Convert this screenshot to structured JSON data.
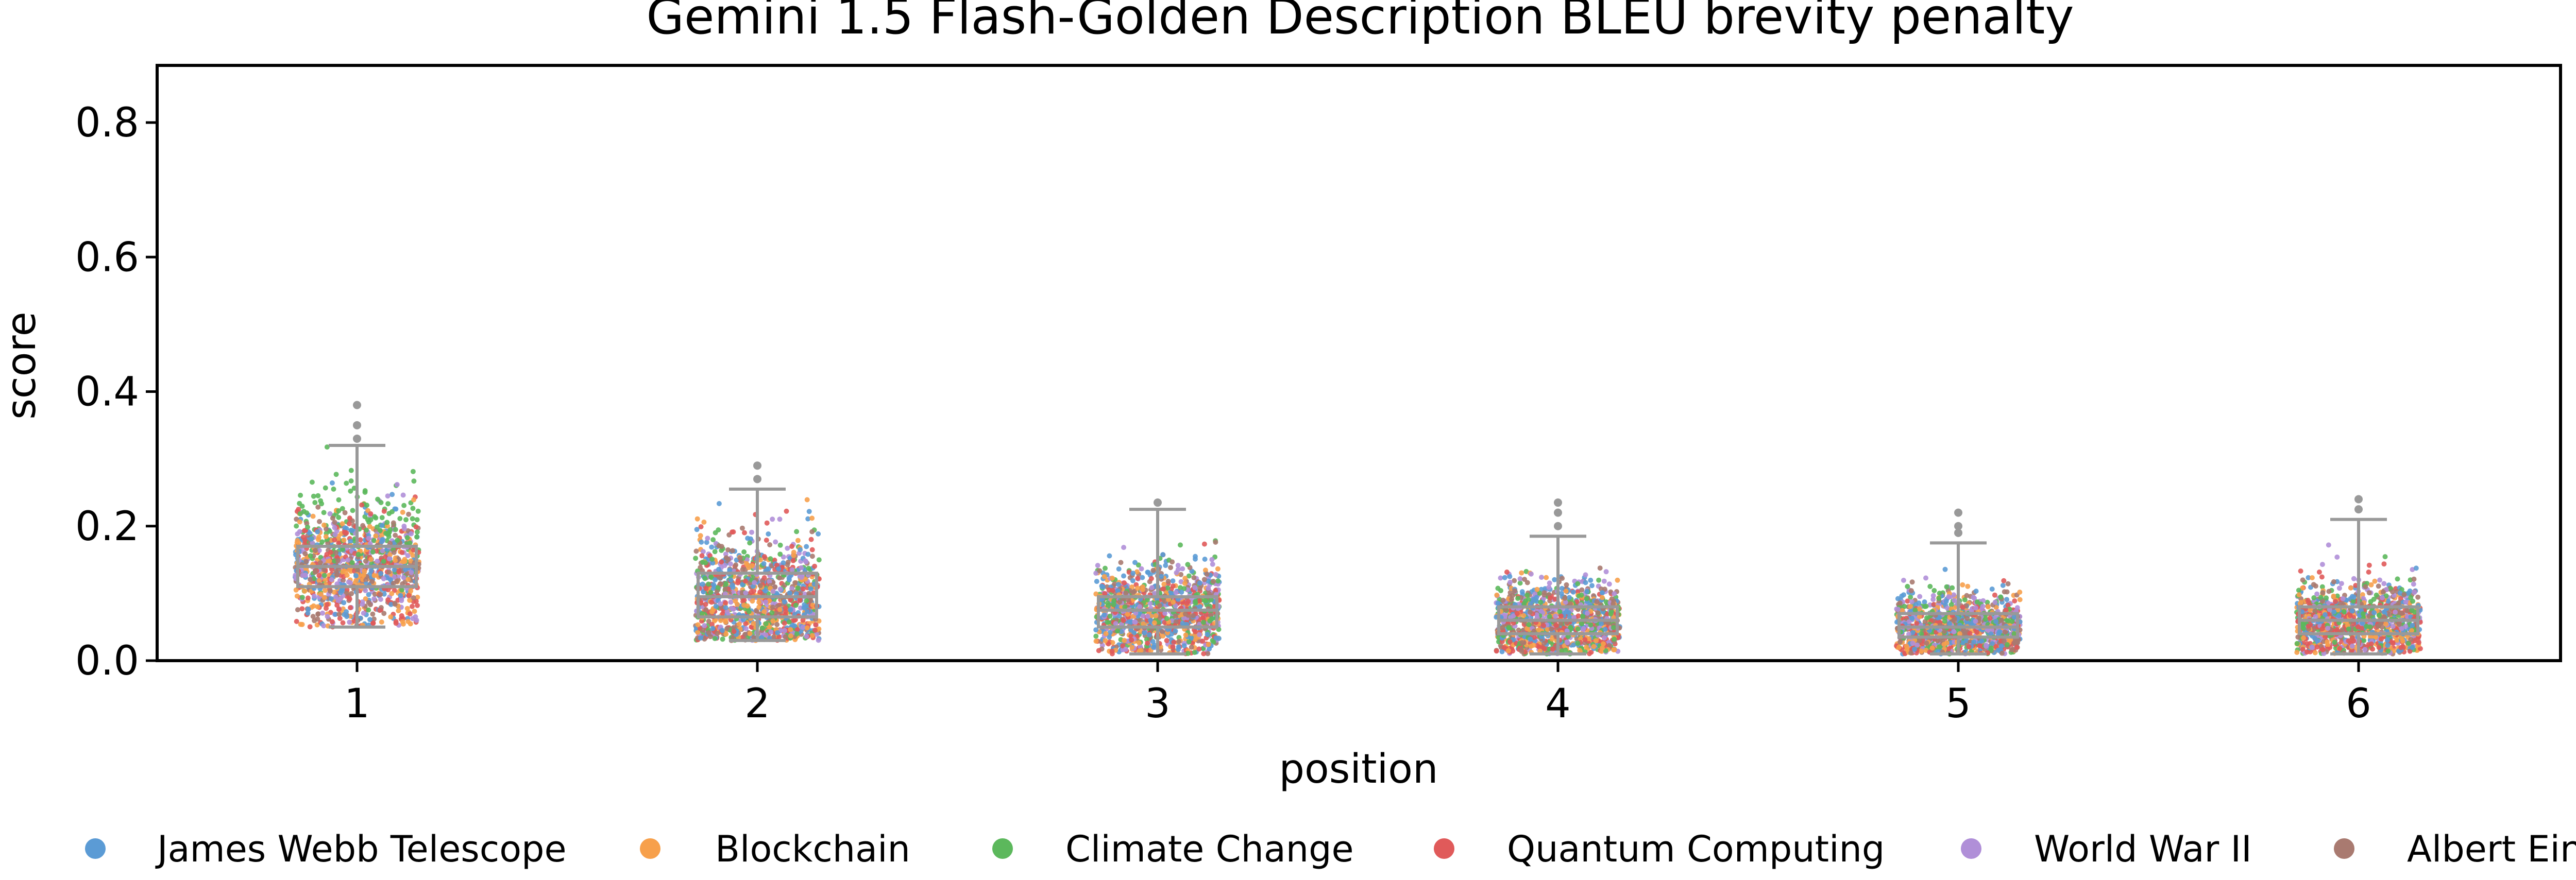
{
  "chart_data": {
    "type": "box-strip",
    "title": "Gemini 1.5 Flash-Golden Description BLEU brevity penalty",
    "xlabel": "position",
    "ylabel": "score",
    "categories": [
      "1",
      "2",
      "3",
      "4",
      "5",
      "6"
    ],
    "ylim": [
      0,
      0.885
    ],
    "yticks": [
      "0.0",
      "0.2",
      "0.4",
      "0.6",
      "0.8"
    ],
    "legend_position": "bottom",
    "boxes": [
      {
        "position": "1",
        "whisker_low": 0.05,
        "q1": 0.11,
        "median": 0.14,
        "q3": 0.17,
        "whisker_high": 0.32,
        "outliers": [
          0.33,
          0.35,
          0.38
        ]
      },
      {
        "position": "2",
        "whisker_low": 0.03,
        "q1": 0.065,
        "median": 0.095,
        "q3": 0.13,
        "whisker_high": 0.255,
        "outliers": [
          0.27,
          0.29
        ]
      },
      {
        "position": "3",
        "whisker_low": 0.01,
        "q1": 0.05,
        "median": 0.075,
        "q3": 0.095,
        "whisker_high": 0.225,
        "outliers": [
          0.235
        ]
      },
      {
        "position": "4",
        "whisker_low": 0.01,
        "q1": 0.04,
        "median": 0.06,
        "q3": 0.08,
        "whisker_high": 0.185,
        "outliers": [
          0.2,
          0.22,
          0.235
        ]
      },
      {
        "position": "5",
        "whisker_low": 0.01,
        "q1": 0.035,
        "median": 0.05,
        "q3": 0.07,
        "whisker_high": 0.175,
        "outliers": [
          0.19,
          0.2,
          0.22
        ]
      },
      {
        "position": "6",
        "whisker_low": 0.01,
        "q1": 0.04,
        "median": 0.06,
        "q3": 0.08,
        "whisker_high": 0.21,
        "outliers": [
          0.225,
          0.24
        ]
      }
    ],
    "series": [
      {
        "name": "James Webb Telescope",
        "color": "#5b9bd5"
      },
      {
        "name": "Blockchain",
        "color": "#f7a04b"
      },
      {
        "name": "Climate Change",
        "color": "#5cb85c"
      },
      {
        "name": "Quantum Computing",
        "color": "#e05a5a"
      },
      {
        "name": "World War II",
        "color": "#b08fd8"
      },
      {
        "name": "Albert Einstein",
        "color": "#a97a70"
      }
    ],
    "box_color": "#999999"
  }
}
